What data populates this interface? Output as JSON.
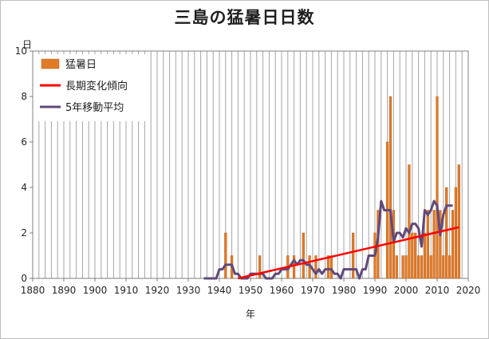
{
  "chart_data": {
    "type": "bar",
    "title": "三島の猛暑日日数",
    "xlabel": "年",
    "ylabel": "日",
    "xlim": [
      1880,
      2020
    ],
    "ylim": [
      0,
      10
    ],
    "xticks": [
      1880,
      1890,
      1900,
      1910,
      1920,
      1930,
      1940,
      1950,
      1960,
      1970,
      1980,
      1990,
      2000,
      2010,
      2020
    ],
    "yticks": [
      0,
      2,
      4,
      6,
      8,
      10
    ],
    "grid": "vertical",
    "legend_position": "top-left",
    "series": [
      {
        "name": "猛暑日",
        "type": "bar",
        "color": "#e07b29",
        "x": [
          1933,
          1934,
          1935,
          1936,
          1937,
          1938,
          1939,
          1940,
          1941,
          1942,
          1943,
          1944,
          1945,
          1946,
          1947,
          1948,
          1949,
          1950,
          1951,
          1952,
          1953,
          1954,
          1955,
          1956,
          1957,
          1958,
          1959,
          1960,
          1961,
          1962,
          1963,
          1964,
          1965,
          1966,
          1967,
          1968,
          1969,
          1970,
          1971,
          1972,
          1973,
          1974,
          1975,
          1976,
          1977,
          1978,
          1979,
          1980,
          1981,
          1982,
          1983,
          1984,
          1985,
          1986,
          1987,
          1988,
          1989,
          1990,
          1991,
          1992,
          1993,
          1994,
          1995,
          1996,
          1997,
          1998,
          1999,
          2000,
          2001,
          2002,
          2003,
          2004,
          2005,
          2006,
          2007,
          2008,
          2009,
          2010,
          2011,
          2012,
          2013,
          2014,
          2015,
          2016,
          2017
        ],
        "values": [
          0,
          0,
          0,
          0,
          0,
          0,
          0,
          0,
          0,
          2,
          0,
          1,
          0,
          0,
          0,
          0,
          0,
          0,
          0,
          0,
          1,
          0,
          0,
          0,
          0,
          0,
          0,
          0,
          0,
          1,
          0,
          1,
          0,
          0,
          2,
          0,
          1,
          0,
          1,
          0,
          0,
          0,
          1,
          1,
          0,
          0,
          0,
          0,
          0,
          0,
          2,
          0,
          0,
          0,
          0,
          0,
          0,
          2,
          3,
          0,
          0,
          6,
          8,
          3,
          1,
          0,
          1,
          1,
          5,
          2,
          2,
          1,
          1,
          2,
          3,
          1,
          3,
          8,
          3,
          1,
          4,
          1,
          3,
          4,
          5
        ]
      },
      {
        "name": "長期変化傾向",
        "type": "line",
        "color": "#ff0000",
        "x": [
          1946,
          2017
        ],
        "values": [
          0.0,
          2.25
        ]
      },
      {
        "name": "5年移動平均",
        "type": "line",
        "color": "#60497a",
        "x": [
          1935,
          1936,
          1937,
          1938,
          1939,
          1940,
          1941,
          1942,
          1943,
          1944,
          1945,
          1946,
          1947,
          1948,
          1949,
          1950,
          1951,
          1952,
          1953,
          1954,
          1955,
          1956,
          1957,
          1958,
          1959,
          1960,
          1961,
          1962,
          1963,
          1964,
          1965,
          1966,
          1967,
          1968,
          1969,
          1970,
          1971,
          1972,
          1973,
          1974,
          1975,
          1976,
          1977,
          1978,
          1979,
          1980,
          1981,
          1982,
          1983,
          1984,
          1985,
          1986,
          1987,
          1988,
          1989,
          1990,
          1991,
          1992,
          1993,
          1994,
          1995,
          1996,
          1997,
          1998,
          1999,
          2000,
          2001,
          2002,
          2003,
          2004,
          2005,
          2006,
          2007,
          2008,
          2009,
          2010,
          2011,
          2012,
          2013,
          2014,
          2015
        ],
        "values": [
          0,
          0,
          0,
          0,
          0,
          0.4,
          0.4,
          0.6,
          0.6,
          0.6,
          0.2,
          0.2,
          0,
          0,
          0,
          0.2,
          0.2,
          0.2,
          0.2,
          0.2,
          0,
          0,
          0,
          0.2,
          0.2,
          0.4,
          0.4,
          0.4,
          0.6,
          0.8,
          0.6,
          0.8,
          0.8,
          0.6,
          0.6,
          0.4,
          0.2,
          0.4,
          0.2,
          0.4,
          0.4,
          0.4,
          0.2,
          0.2,
          0,
          0.4,
          0.4,
          0.4,
          0.4,
          0.4,
          0,
          0.4,
          0.4,
          1,
          1,
          1,
          1.8,
          3.4,
          3,
          3,
          3,
          1.6,
          2,
          2,
          1.8,
          2.2,
          2,
          2.4,
          2.4,
          2.2,
          1.4,
          3,
          2.8,
          3,
          3.4,
          3.2,
          1.9,
          2.8,
          3.2,
          3.2,
          3.2
        ]
      }
    ]
  }
}
